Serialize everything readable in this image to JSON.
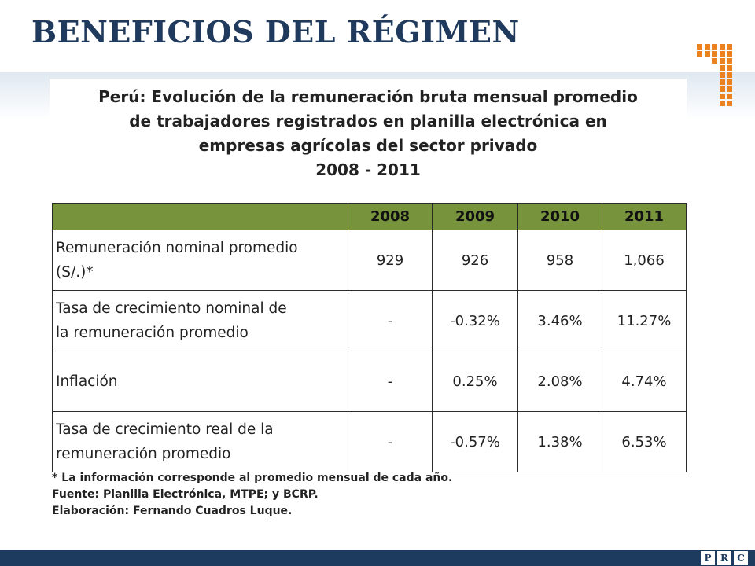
{
  "header": {
    "title": "BENEFICIOS DEL RÉGIMEN"
  },
  "figure": {
    "title_lines": [
      "Perú: Evolución de la remuneración bruta mensual promedio",
      "de trabajadores registrados en planilla electrónica en",
      "empresas agrícolas del sector privado",
      "2008 - 2011"
    ],
    "table": {
      "columns": [
        "",
        "2008",
        "2009",
        "2010",
        "2011"
      ],
      "rows": [
        {
          "label_lines": [
            "Remuneración nominal promedio",
            "(S/.)*"
          ],
          "values": [
            "929",
            "926",
            "958",
            "1,066"
          ]
        },
        {
          "label_lines": [
            "Tasa de crecimiento nominal de",
            "la remuneración promedio"
          ],
          "values": [
            "-",
            "-0.32%",
            "3.46%",
            "11.27%"
          ]
        },
        {
          "label_lines": [
            "Inflación",
            ""
          ],
          "values": [
            "-",
            "0.25%",
            "2.08%",
            "4.74%"
          ]
        },
        {
          "label_lines": [
            "Tasa de crecimiento real de la",
            "remuneración promedio"
          ],
          "values": [
            "-",
            "-0.57%",
            "1.38%",
            "6.53%"
          ]
        }
      ]
    },
    "notes": [
      "* La información corresponde al promedio mensual de cada año.",
      "Fuente: Planilla Electrónica, MTPE; y BCRP.",
      "Elaboración: Fernando Cuadros Luque."
    ]
  },
  "footer": {
    "logo_letters": [
      "P",
      "R",
      "C"
    ]
  },
  "colors": {
    "title": "#1f3a5c",
    "accent_orange": "#e9821f",
    "table_header": "#77933c",
    "footer_bar": "#1c3b5e"
  }
}
